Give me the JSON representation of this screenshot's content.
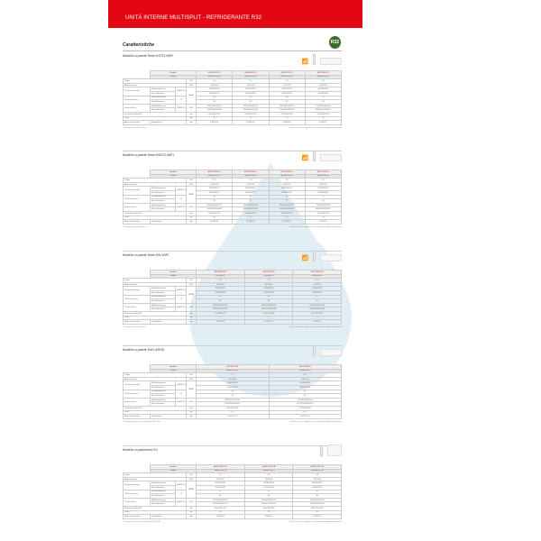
{
  "header": {
    "title": "UNITÀ INTERNE MULTISPLIT - REFRIGERANTE R32",
    "badge": "R32"
  },
  "page_title": "Caratteristiche",
  "labels": {
    "modello": "Modello",
    "codice": "Codice",
    "taglia": "Taglia",
    "alimentazione": "Alimentazione",
    "pressione": "Pressione sonora",
    "potenza": "Potenza sonora",
    "portata": "Portata d'aria",
    "dimensioni": "Dimensioni (AxLxP)",
    "peso": "Peso",
    "attacchi": "Attacchi tubazioni",
    "raff": "Raffreddamento",
    "risc": "Riscaldamento",
    "liquido": "Liquido/Gas",
    "hmlq": "(H/M/L/Q)",
    "h": "H",
    "u_kw": "kW",
    "u_v": "V/Hz",
    "u_db": "dB(A)",
    "u_m3": "m³/h",
    "u_mm": "mm",
    "u_kg": "kg"
  },
  "disclaimer": "I dati tecnici sono soggetti a variazioni senza obbligo di preavviso",
  "sections": [
    {
      "title": "Modello a parete Serie KGTG-WIFI",
      "wifi": true,
      "floor": false,
      "note": "* Telecomando e WiFi inclusi",
      "models": [
        "ASD07KGTG",
        "ASD09KGTG",
        "ASD12KGTG",
        "ASD18KGTG"
      ],
      "codes": [
        "3NGF9210_R",
        "3NGF9215_R",
        "3NGF9220_R",
        "3NGF9240_R"
      ],
      "taglia": [
        "2.0",
        "2.5",
        "3.5",
        "5.0"
      ],
      "alim": [
        "230/1/50",
        "230/1/50",
        "230/1/50",
        "230/1/50"
      ],
      "pr_raff": [
        "35/33/24/21",
        "40/34/29/21",
        "43/37/30/21",
        "45/39/33/21"
      ],
      "pr_risc": [
        "41/35/31/22",
        "42/36/33/22",
        "42/36/35/22",
        "44/39/33/24"
      ],
      "po_raff": [
        "54",
        "55",
        "56",
        "57"
      ],
      "po_risc": [
        "56",
        "57",
        "57",
        "59"
      ],
      "aria_raff": [
        "330/240/430/270",
        "350/300/400/270",
        "350/344/530/270",
        "770/650/450/280"
      ],
      "aria_risc": [
        "330/300/400/300",
        "350/300/470/330",
        "370/440/590/330",
        "860/800/520/340"
      ],
      "dim": [
        "270x834x223",
        "270x834x223",
        "270x834x223",
        "270x834x223"
      ],
      "peso": [
        "10",
        "10",
        "10",
        "10"
      ],
      "attacchi": [
        "6.35/9.52",
        "6.35/9.52",
        "6.35/9.52",
        "6.35/12.7"
      ]
    },
    {
      "title": "Modello a parete Serie KMCG-WIFI",
      "wifi": true,
      "floor": false,
      "note": "* Telecomando e WiFi inclusi",
      "models": [
        "ASD07KMCG",
        "ASD09KMCG",
        "ASD12KMCG",
        "ASD18KMCG"
      ],
      "codes": [
        "3NGF9212_R",
        "3NGF9216_R",
        "3NGF9224_R",
        "3NGF9248_R"
      ],
      "taglia": [
        "2.0",
        "2.5",
        "3.5",
        "5.0"
      ],
      "alim": [
        "230/1/50",
        "230/1/50",
        "230/1/50",
        "230/1/50"
      ],
      "pr_raff": [
        "35/33/24/21",
        "40/34/29/21",
        "43/37/30/21",
        "45/39/33/21"
      ],
      "pr_risc": [
        "41/35/31/22",
        "42/36/33/22",
        "42/36/35/22",
        "44/39/33/24"
      ],
      "po_raff": [
        "54",
        "55",
        "56",
        "57"
      ],
      "po_risc": [
        "56",
        "57",
        "57",
        "59"
      ],
      "aria_raff": [
        "330/240/430/270",
        "350/300/400/270",
        "350/344/530/270",
        "770/650/450/280"
      ],
      "aria_risc": [
        "330/300/400/300",
        "350/300/470/330",
        "370/440/590/330",
        "860/800/520/340"
      ],
      "dim": [
        "270x834x223",
        "270x834x223",
        "270x834x223",
        "270x834x223"
      ],
      "peso": [
        "10",
        "10",
        "10",
        "10"
      ],
      "attacchi": [
        "6.35/9.52",
        "6.35/9.52",
        "6.35/9.52",
        "6.35/12.7"
      ]
    },
    {
      "title": "Modello a parete Serie KN-WIFI",
      "wifi": true,
      "floor": false,
      "note": "* Telecomando e WiFi inclusi",
      "models": [
        "ASD09KNCA",
        "ASD12KNCA",
        "ASD18KNCA"
      ],
      "codes": [
        "3NGF8000",
        "3NGF8010",
        "3NGF8016"
      ],
      "taglia": [
        "2.6",
        "3.5",
        "5.0"
      ],
      "alim": [
        "230/1/50",
        "230/1/50",
        "230/1/50"
      ],
      "pr_raff": [
        "38/33/28/21",
        "41/36/30/21",
        "43/38/32/21"
      ],
      "pr_risc": [
        "38/33/28/22",
        "41/36/30/22",
        "43/38/32/22"
      ],
      "po_raff": [
        "55",
        "56",
        "57"
      ],
      "po_risc": [
        "55",
        "56",
        "57"
      ],
      "aria_raff": [
        "530/460/380/250",
        "580/560/380/250",
        "650/550/480/280"
      ],
      "aria_risc": [
        "530/460/380/250",
        "580/560/380/250",
        "650/550/480/280"
      ],
      "dim": [
        "270x744x222",
        "270x744x222",
        "270x744x222"
      ],
      "peso": [
        "8",
        "8",
        "9"
      ],
      "attacchi": [
        "6.35/9.52",
        "6.35/9.52",
        "6.35/12.7"
      ]
    },
    {
      "title": "Modello a parete KM LARGE",
      "wifi": false,
      "floor": false,
      "note": "* Telecomando con timer settimanale INCLUSO",
      "models": [
        "ASD24KMTA",
        "ASD30KMTA"
      ],
      "codes": [
        "3NGF9244_R",
        "3NGF9284_R"
      ],
      "taglia": [
        "7.0",
        "8.0"
      ],
      "alim": [
        "230/1/50",
        "230/1/50"
      ],
      "pr_raff": [
        "45/42/35/29",
        "48/45/40/35"
      ],
      "pr_risc": [
        "45/40/37/29",
        "48/45/40/35"
      ],
      "po_raff": [
        "59",
        "62"
      ],
      "po_risc": [
        "61",
        "63"
      ],
      "aria_raff": [
        "980/870/744/510",
        "1170/950/840/510"
      ],
      "aria_risc": [
        "1020/920/840/510",
        "1170/1020/840/510"
      ],
      "dim": [
        "320x990x240",
        "320x990x240"
      ],
      "peso": [
        "12.7",
        "13.7"
      ],
      "attacchi": [
        "6.35/12.70",
        "6.35/12.70"
      ]
    },
    {
      "title": "Modello a pavimento KV",
      "wifi": false,
      "floor": true,
      "note": "* Telecomando con timer settimanale INCLUSO",
      "models": [
        "AGED09KVCA",
        "AGED12KVCA",
        "AGED18KVCA"
      ],
      "codes": [
        "3NGF8741_R",
        "3NGF8748_R",
        "3NGF8751_R"
      ],
      "taglia": [
        "2.5",
        "3.5",
        "4.8"
      ],
      "alim": [
        "230/1/50",
        "230/1/50",
        "230/1/50"
      ],
      "pr_raff": [
        "36/32/28/22",
        "42/36/30/23",
        "45/39/33/22"
      ],
      "pr_risc": [
        "38/33/30/22",
        "42/35/32/23",
        "45/39/33/22"
      ],
      "po_raff": [
        "52",
        "55",
        "58"
      ],
      "po_risc": [
        "52",
        "55",
        "58"
      ],
      "aria_raff": [
        "520/460/380/230",
        "600/480/380/270",
        "700/550/400/270"
      ],
      "aria_risc": [
        "520/460/380/270",
        "600/510/400/270",
        "700/540/400/270"
      ],
      "dim": [
        "600x700x200",
        "600x700x200",
        "600x700x200"
      ],
      "peso": [
        "14",
        "14",
        "14"
      ],
      "attacchi": [
        "6.35/9.52",
        "6.35/9.52",
        "6.35/9.52"
      ]
    }
  ]
}
